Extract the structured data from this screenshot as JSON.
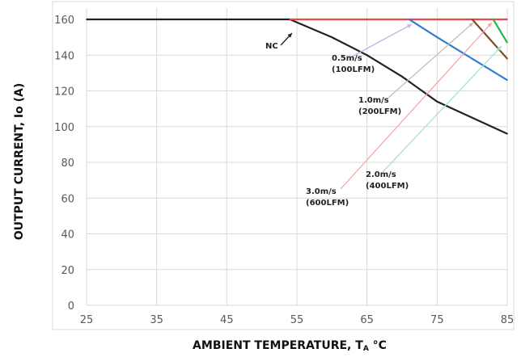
{
  "chart_data": {
    "type": "line",
    "xlabel": "AMBIENT TEMPERATURE, T",
    "xlabel_sub": "A",
    "xlabel_unit": " °C",
    "ylabel": "OUTPUT CURRENT, Io (A)",
    "xlim": [
      25,
      85
    ],
    "ylim": [
      0,
      165
    ],
    "x_ticks": [
      "25",
      "35",
      "45",
      "55",
      "65",
      "75",
      "85"
    ],
    "y_ticks": [
      "0",
      "20",
      "40",
      "60",
      "80",
      "100",
      "120",
      "140",
      "160"
    ],
    "grid": true,
    "legend": "none",
    "series": [
      {
        "color": "#222222",
        "x": [
          25,
          54,
          60,
          65,
          70,
          75,
          80,
          85
        ],
        "y": [
          160,
          160,
          150,
          140,
          128,
          114,
          105,
          96
        ]
      },
      {
        "color": "#e8484a",
        "x": [
          54,
          85
        ],
        "y": [
          160,
          160
        ]
      },
      {
        "color": "#2e7fd0",
        "x": [
          71,
          75,
          80,
          85
        ],
        "y": [
          160,
          150,
          138,
          126
        ]
      },
      {
        "color": "#7a4a2a",
        "x": [
          80,
          85
        ],
        "y": [
          160,
          138
        ]
      },
      {
        "color": "#2bb54a",
        "x": [
          83,
          85
        ],
        "y": [
          160,
          147
        ]
      }
    ],
    "annotations": [
      {
        "lines": [
          "NC"
        ],
        "color": "#222222"
      },
      {
        "lines": [
          "0.5m/s",
          "(100LFM)"
        ],
        "color": "#b9b9e6"
      },
      {
        "lines": [
          "1.0m/s",
          "(200LFM)"
        ],
        "color": "#c8bdb0"
      },
      {
        "lines": [
          "2.0m/s",
          "(400LFM)"
        ],
        "color": "#a8e4c4"
      },
      {
        "lines": [
          "3.0m/s",
          "(600LFM)"
        ],
        "color": "#f4a6a6"
      }
    ]
  }
}
